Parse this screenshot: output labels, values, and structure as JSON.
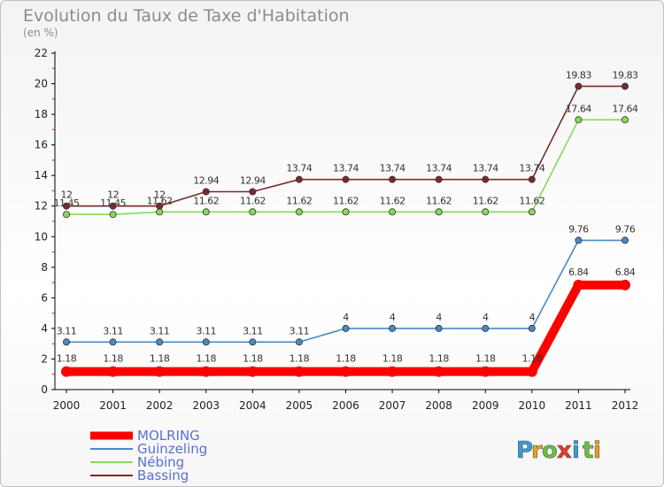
{
  "chart_data": {
    "type": "line",
    "title": "Evolution du Taux de Taxe d'Habitation",
    "subtitle": "(en %)",
    "x": [
      "2000",
      "2001",
      "2002",
      "2003",
      "2004",
      "2005",
      "2006",
      "2007",
      "2008",
      "2009",
      "2010",
      "2011",
      "2012"
    ],
    "yticks": [
      0,
      2,
      4,
      6,
      8,
      10,
      12,
      14,
      16,
      18,
      20,
      22
    ],
    "ylim": [
      0,
      22
    ],
    "grid": false,
    "legend_position": "bottom-left",
    "series": [
      {
        "name": "MOLRING",
        "color": "#ff0000",
        "values": [
          1.18,
          1.18,
          1.18,
          1.18,
          1.18,
          1.18,
          1.18,
          1.18,
          1.18,
          1.18,
          1.18,
          6.84,
          6.84
        ],
        "labels": [
          "1.18",
          "1.18",
          "1.18",
          "1.18",
          "1.18",
          "1.18",
          "1.18",
          "1.18",
          "1.18",
          "1.18",
          "1.18",
          "6.84",
          "6.84"
        ]
      },
      {
        "name": "Guinzeling",
        "color": "#4a8ac4",
        "values": [
          3.11,
          3.11,
          3.11,
          3.11,
          3.11,
          3.11,
          4,
          4,
          4,
          4,
          4,
          9.76,
          9.76
        ],
        "labels": [
          "3.11",
          "3.11",
          "3.11",
          "3.11",
          "3.11",
          "3.11",
          "4",
          "4",
          "4",
          "4",
          "4",
          "9.76",
          "9.76"
        ]
      },
      {
        "name": "Nébing",
        "color": "#88d85a",
        "values": [
          11.45,
          11.45,
          11.62,
          11.62,
          11.62,
          11.62,
          11.62,
          11.62,
          11.62,
          11.62,
          11.62,
          17.64,
          17.64
        ],
        "labels": [
          "11.45",
          "11.45",
          "11.62",
          "11.62",
          "11.62",
          "11.62",
          "11.62",
          "11.62",
          "11.62",
          "11.62",
          "11.62",
          "17.64",
          "17.64"
        ]
      },
      {
        "name": "Bassing",
        "color": "#7a2a2a",
        "values": [
          12,
          12,
          12,
          12.94,
          12.94,
          13.74,
          13.74,
          13.74,
          13.74,
          13.74,
          13.74,
          19.83,
          19.83
        ],
        "labels": [
          "12",
          "12",
          "12",
          "12.94",
          "12.94",
          "13.74",
          "13.74",
          "13.74",
          "13.74",
          "13.74",
          "13.74",
          "19.83",
          "19.83"
        ]
      }
    ],
    "legend_text_color": "#5a6fd6"
  },
  "brand": {
    "letters": [
      "P",
      "r",
      "o",
      "x",
      "i",
      "t",
      "i"
    ],
    "colors": [
      "#3a9ad9",
      "#e8a21a",
      "#6cbf3a",
      "#e83a2a",
      "#3a9ad9",
      "#6cbf3a",
      "#e8a21a"
    ]
  }
}
